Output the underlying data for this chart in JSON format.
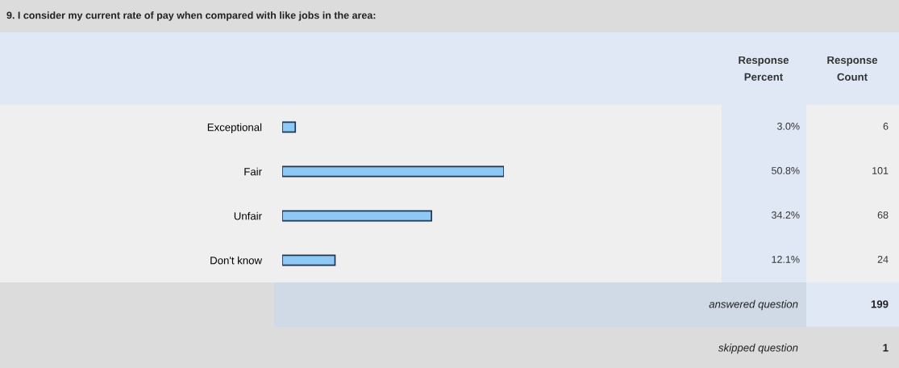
{
  "chart_data": {
    "type": "bar",
    "orientation": "horizontal",
    "title": "9. I consider my current rate of pay when compared with like jobs in the area:",
    "categories": [
      "Exceptional",
      "Fair",
      "Unfair",
      "Don't know"
    ],
    "values": [
      3.0,
      50.8,
      34.2,
      12.1
    ],
    "value_labels": [
      "3.0%",
      "50.8%",
      "34.2%",
      "12.1%"
    ],
    "color": "#8ec8f5",
    "annotations": [
      "Response Percent",
      "Response Count",
      "6",
      "101",
      "68",
      "24",
      "answered question",
      "199",
      "skipped question",
      "1"
    ]
  }
}
